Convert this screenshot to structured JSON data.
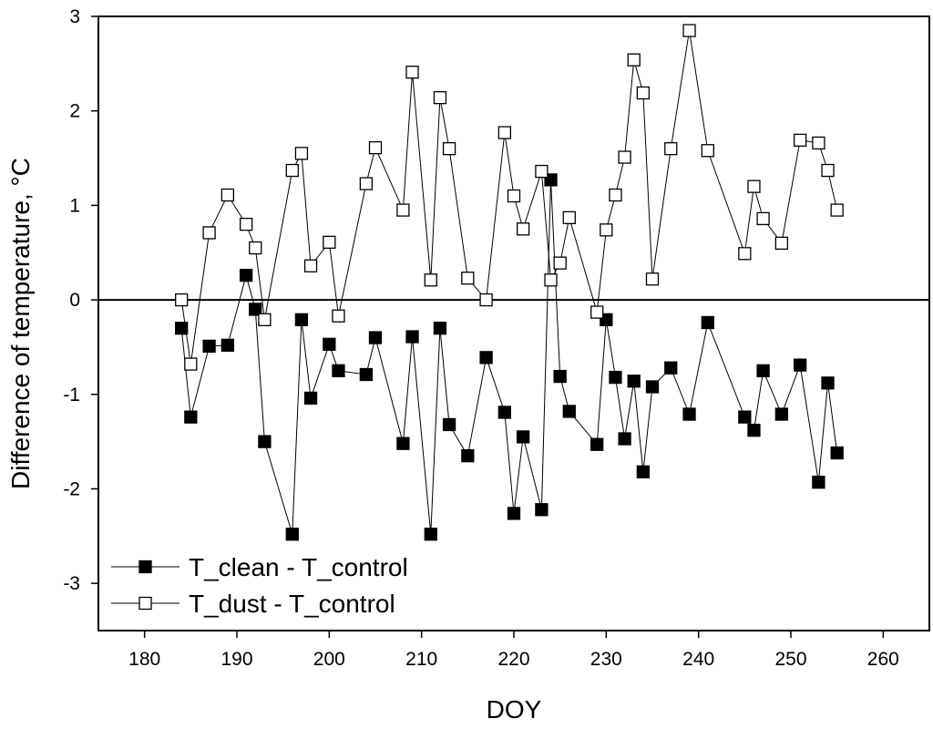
{
  "chart_data": {
    "type": "line",
    "title": "",
    "xlabel": "DOY",
    "ylabel": "Difference of temperature, °C",
    "xlim": [
      175,
      265
    ],
    "ylim": [
      -3.5,
      3
    ],
    "xticks": [
      180,
      190,
      200,
      210,
      220,
      230,
      240,
      250,
      260
    ],
    "yticks": [
      -3,
      -2,
      -1,
      0,
      1,
      2,
      3
    ],
    "zero_line": true,
    "legend_position": "bottom-left",
    "series": [
      {
        "name": "T_clean - T_control",
        "marker": "filled-square",
        "color": "#000000",
        "points": [
          [
            184,
            -0.3
          ],
          [
            185,
            -1.24
          ],
          [
            187,
            -0.49
          ],
          [
            189,
            -0.48
          ],
          [
            191,
            0.26
          ],
          [
            192,
            -0.1
          ],
          [
            193,
            -1.5
          ],
          [
            196,
            -2.48
          ],
          [
            197,
            -0.21
          ],
          [
            198,
            -1.04
          ],
          [
            200,
            -0.47
          ],
          [
            201,
            -0.75
          ],
          [
            204,
            -0.79
          ],
          [
            205,
            -0.4
          ],
          [
            208,
            -1.52
          ],
          [
            209,
            -0.39
          ],
          [
            211,
            -2.48
          ],
          [
            212,
            -0.3
          ],
          [
            213,
            -1.32
          ],
          [
            215,
            -1.65
          ],
          [
            217,
            -0.61
          ],
          [
            219,
            -1.19
          ],
          [
            220,
            -2.26
          ],
          [
            221,
            -1.45
          ],
          [
            223,
            -2.22
          ],
          [
            224,
            1.27
          ],
          [
            225,
            -0.81
          ],
          [
            226,
            -1.18
          ],
          [
            229,
            -1.53
          ],
          [
            230,
            -0.21
          ],
          [
            231,
            -0.82
          ],
          [
            232,
            -1.47
          ],
          [
            233,
            -0.86
          ],
          [
            234,
            -1.82
          ],
          [
            235,
            -0.92
          ],
          [
            237,
            -0.72
          ],
          [
            239,
            -1.21
          ],
          [
            241,
            -0.24
          ],
          [
            245,
            -1.24
          ],
          [
            246,
            -1.38
          ],
          [
            247,
            -0.75
          ],
          [
            249,
            -1.21
          ],
          [
            251,
            -0.69
          ],
          [
            253,
            -1.93
          ],
          [
            254,
            -0.88
          ],
          [
            255,
            -1.62
          ]
        ]
      },
      {
        "name": "T_dust - T_control",
        "marker": "open-square",
        "color": "#000000",
        "points": [
          [
            184,
            0.0
          ],
          [
            185,
            -0.68
          ],
          [
            187,
            0.71
          ],
          [
            189,
            1.11
          ],
          [
            191,
            0.8
          ],
          [
            192,
            0.55
          ],
          [
            193,
            -0.21
          ],
          [
            196,
            1.37
          ],
          [
            197,
            1.55
          ],
          [
            198,
            0.36
          ],
          [
            200,
            0.61
          ],
          [
            201,
            -0.17
          ],
          [
            204,
            1.23
          ],
          [
            205,
            1.61
          ],
          [
            208,
            0.95
          ],
          [
            209,
            2.41
          ],
          [
            211,
            0.21
          ],
          [
            212,
            2.14
          ],
          [
            213,
            1.6
          ],
          [
            215,
            0.23
          ],
          [
            217,
            0.0
          ],
          [
            219,
            1.77
          ],
          [
            220,
            1.1
          ],
          [
            221,
            0.75
          ],
          [
            223,
            1.36
          ],
          [
            224,
            0.21
          ],
          [
            225,
            0.39
          ],
          [
            226,
            0.87
          ],
          [
            229,
            -0.13
          ],
          [
            230,
            0.74
          ],
          [
            231,
            1.11
          ],
          [
            232,
            1.51
          ],
          [
            233,
            2.54
          ],
          [
            234,
            2.19
          ],
          [
            235,
            0.22
          ],
          [
            237,
            1.6
          ],
          [
            239,
            2.85
          ],
          [
            241,
            1.58
          ],
          [
            245,
            0.49
          ],
          [
            246,
            1.2
          ],
          [
            247,
            0.86
          ],
          [
            249,
            0.6
          ],
          [
            251,
            1.69
          ],
          [
            253,
            1.66
          ],
          [
            254,
            1.37
          ],
          [
            255,
            0.95
          ]
        ]
      }
    ]
  }
}
